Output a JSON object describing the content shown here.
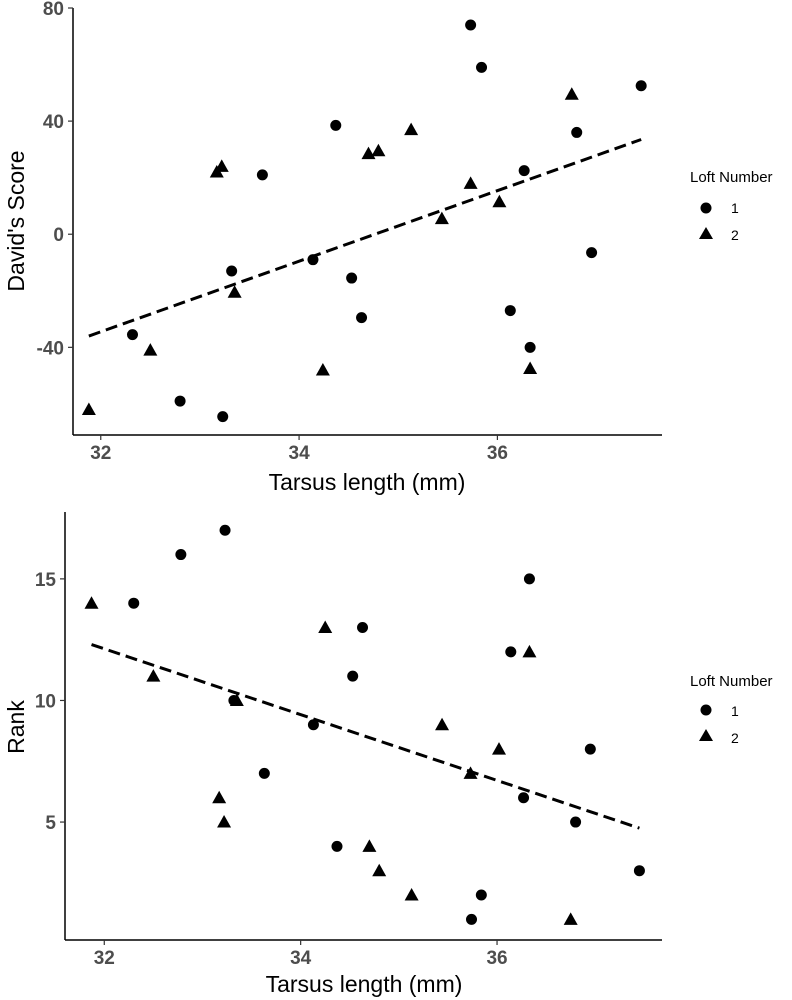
{
  "chart_data": [
    {
      "type": "scatter",
      "xlabel": "Tarsus length (mm)",
      "ylabel": "David's Score",
      "xlim": [
        31.72,
        37.66
      ],
      "ylim": [
        -71,
        80
      ],
      "xticks": [
        32,
        34,
        36
      ],
      "xtick_labels": [
        "32",
        "34",
        "36"
      ],
      "yticks": [
        -40,
        0,
        40,
        80
      ],
      "ytick_labels": [
        "-40",
        "0",
        "40",
        "80"
      ],
      "grid": false,
      "legend": {
        "title": "Loft Number",
        "placement": "right",
        "entries": [
          {
            "label": "1",
            "marker": "circle"
          },
          {
            "label": "2",
            "marker": "triangle"
          }
        ]
      },
      "series": [
        {
          "name": "1",
          "marker": "circle",
          "points": [
            [
              32.32,
              -35.5
            ],
            [
              32.8,
              -59
            ],
            [
              33.23,
              -64.5
            ],
            [
              33.32,
              -13
            ],
            [
              33.63,
              21
            ],
            [
              34.14,
              -9
            ],
            [
              34.37,
              38.5
            ],
            [
              34.53,
              -15.5
            ],
            [
              34.63,
              -29.5
            ],
            [
              35.73,
              74
            ],
            [
              35.84,
              59
            ],
            [
              36.13,
              -27
            ],
            [
              36.27,
              22.5
            ],
            [
              36.33,
              -40
            ],
            [
              36.8,
              36
            ],
            [
              36.95,
              -6.5
            ],
            [
              37.45,
              52.5
            ]
          ]
        },
        {
          "name": "2",
          "marker": "triangle",
          "points": [
            [
              31.88,
              -62
            ],
            [
              32.5,
              -41
            ],
            [
              33.17,
              22
            ],
            [
              33.22,
              24
            ],
            [
              33.35,
              -20.5
            ],
            [
              34.24,
              -48
            ],
            [
              34.7,
              28.5
            ],
            [
              34.8,
              29.5
            ],
            [
              35.13,
              37
            ],
            [
              35.44,
              5.5
            ],
            [
              35.73,
              18
            ],
            [
              36.02,
              11.5
            ],
            [
              36.33,
              -47.5
            ],
            [
              36.75,
              49.5
            ]
          ]
        }
      ],
      "trendline": {
        "style": "dashed",
        "x": [
          31.88,
          37.45
        ],
        "y": [
          -36,
          33.5
        ]
      }
    },
    {
      "type": "scatter",
      "xlabel": "Tarsus length (mm)",
      "ylabel": "Rank",
      "xlim": [
        31.6,
        37.68
      ],
      "ylim": [
        0.15,
        17.75
      ],
      "xticks": [
        32,
        34,
        36
      ],
      "xtick_labels": [
        "32",
        "34",
        "36"
      ],
      "yticks": [
        5,
        10,
        15
      ],
      "ytick_labels": [
        "5",
        "10",
        "15"
      ],
      "grid": false,
      "legend": {
        "title": "Loft Number",
        "placement": "right",
        "entries": [
          {
            "label": "1",
            "marker": "circle"
          },
          {
            "label": "2",
            "marker": "triangle"
          }
        ]
      },
      "series": [
        {
          "name": "1",
          "marker": "circle",
          "points": [
            [
              32.3,
              14
            ],
            [
              32.78,
              16
            ],
            [
              33.23,
              17
            ],
            [
              33.32,
              10
            ],
            [
              33.63,
              7
            ],
            [
              34.13,
              9
            ],
            [
              34.37,
              4
            ],
            [
              34.53,
              11
            ],
            [
              34.63,
              13
            ],
            [
              35.74,
              1
            ],
            [
              35.84,
              2
            ],
            [
              36.14,
              12
            ],
            [
              36.27,
              6
            ],
            [
              36.33,
              15
            ],
            [
              36.8,
              5
            ],
            [
              36.95,
              8
            ],
            [
              37.45,
              3
            ]
          ]
        },
        {
          "name": "2",
          "marker": "triangle",
          "points": [
            [
              31.87,
              14
            ],
            [
              32.5,
              11
            ],
            [
              33.17,
              6
            ],
            [
              33.22,
              5
            ],
            [
              33.35,
              10
            ],
            [
              34.25,
              13
            ],
            [
              34.7,
              4
            ],
            [
              34.8,
              3
            ],
            [
              35.13,
              2
            ],
            [
              35.44,
              9
            ],
            [
              35.73,
              7
            ],
            [
              36.02,
              8
            ],
            [
              36.33,
              12
            ],
            [
              36.75,
              1
            ]
          ]
        }
      ],
      "trendline": {
        "style": "dashed",
        "x": [
          31.87,
          37.45
        ],
        "y": [
          12.3,
          4.75
        ]
      }
    }
  ]
}
